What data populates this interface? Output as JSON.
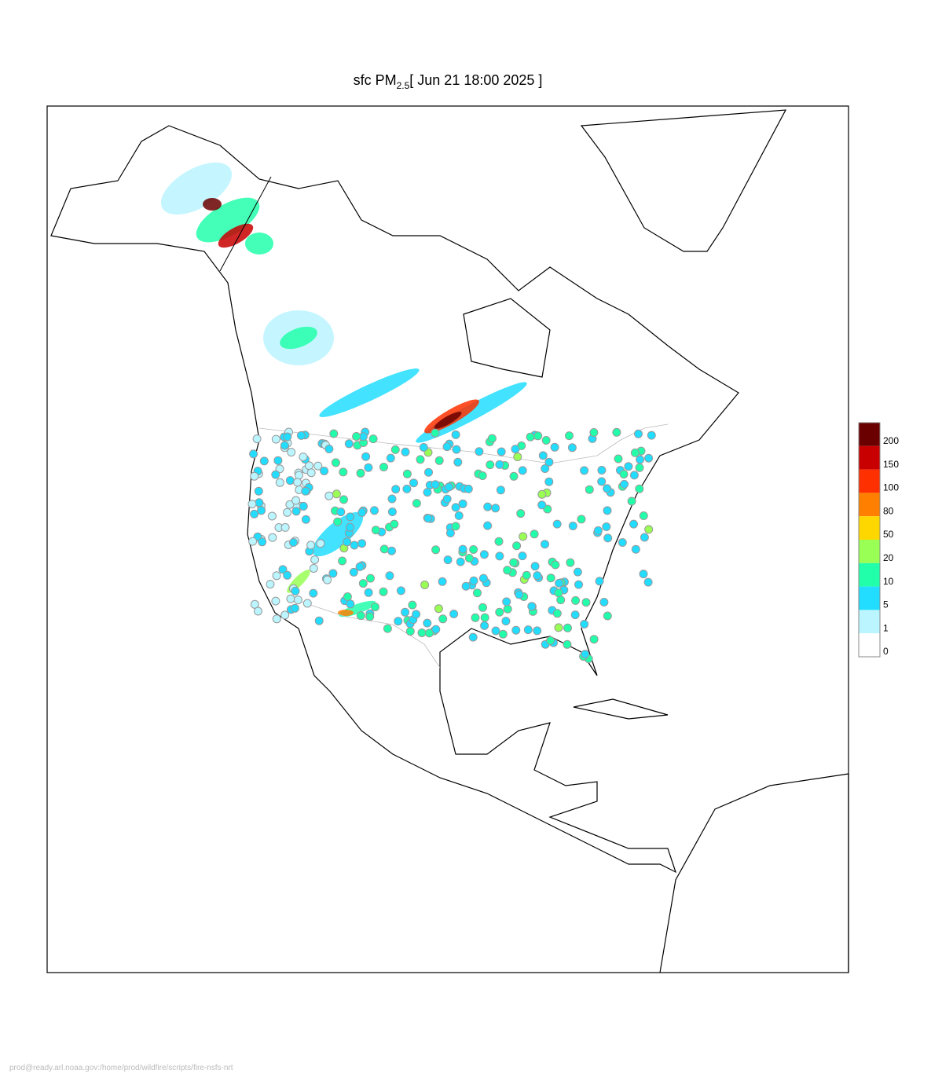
{
  "title": {
    "text": "sfc PM",
    "subscript": "2.5",
    "suffix": "[ Jun 21 18:00 2025 ]"
  },
  "legend": {
    "levels": [
      {
        "label": "200",
        "color": "#6b0000"
      },
      {
        "label": "150",
        "color": "#c80000"
      },
      {
        "label": "100",
        "color": "#ff3000"
      },
      {
        "label": "80",
        "color": "#ff8000"
      },
      {
        "label": "50",
        "color": "#ffd700"
      },
      {
        "label": "20",
        "color": "#99ff55"
      },
      {
        "label": "10",
        "color": "#22ffaa"
      },
      {
        "label": "5",
        "color": "#22ddff"
      },
      {
        "label": "1",
        "color": "#bbf5ff"
      },
      {
        "label": "0",
        "color": "#ffffff"
      }
    ]
  },
  "footer": "prod@ready.arl.noaa.gov:/home/prod/wildfire/scripts/fire-nsfs-nrt"
}
